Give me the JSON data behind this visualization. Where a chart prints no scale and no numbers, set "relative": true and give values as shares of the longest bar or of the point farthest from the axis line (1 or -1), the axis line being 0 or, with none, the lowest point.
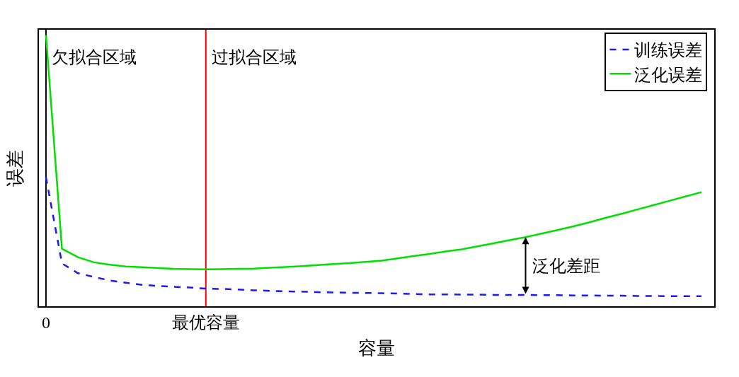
{
  "chart_data": {
    "type": "line",
    "relative": true,
    "xlabel": "容量",
    "ylabel": "误差",
    "categories": [
      "0",
      null,
      null,
      null,
      null,
      null,
      null,
      null,
      null,
      null,
      "最优容量",
      null,
      null,
      null,
      null,
      null,
      null,
      null,
      null,
      null,
      null,
      null,
      null,
      null,
      null,
      null,
      null,
      null,
      null,
      null,
      null,
      null,
      null,
      null,
      null,
      null,
      null,
      null,
      null,
      null,
      null,
      null
    ],
    "series": [
      {
        "name": "训练误差",
        "color": "#1a1aff",
        "line_style": "dashed",
        "values": [
          0.476,
          0.158,
          0.122,
          0.108,
          0.095,
          0.087,
          0.079,
          0.075,
          0.072,
          0.069,
          0.065,
          0.064,
          0.062,
          0.059,
          0.057,
          0.055,
          0.054,
          0.052,
          0.051,
          0.05,
          0.049,
          0.048,
          0.047,
          0.045,
          0.044,
          0.044,
          0.043,
          0.043,
          0.042,
          0.042,
          0.042,
          0.041,
          0.041,
          0.04,
          0.04,
          0.039,
          0.039,
          0.038,
          0.038,
          0.037,
          0.037,
          0.037
        ]
      },
      {
        "name": "泛化误差",
        "color": "#00e000",
        "line_style": "solid",
        "values": [
          1.0,
          0.212,
          0.181,
          0.162,
          0.153,
          0.147,
          0.144,
          0.141,
          0.138,
          0.137,
          0.136,
          0.137,
          0.138,
          0.139,
          0.142,
          0.145,
          0.148,
          0.152,
          0.156,
          0.159,
          0.164,
          0.168,
          0.177,
          0.185,
          0.193,
          0.202,
          0.21,
          0.221,
          0.232,
          0.244,
          0.255,
          0.268,
          0.281,
          0.295,
          0.31,
          0.326,
          0.341,
          0.357,
          0.373,
          0.389,
          0.405,
          0.421
        ]
      }
    ],
    "ref_lines": [
      {
        "axis": "x",
        "value": "0",
        "color": "#000000"
      },
      {
        "axis": "x",
        "value": "最优容量",
        "color": "#ff0000"
      }
    ],
    "annotations": [
      "欠拟合区域",
      "过拟合区域",
      "泛化差距"
    ],
    "legend": "top right"
  }
}
